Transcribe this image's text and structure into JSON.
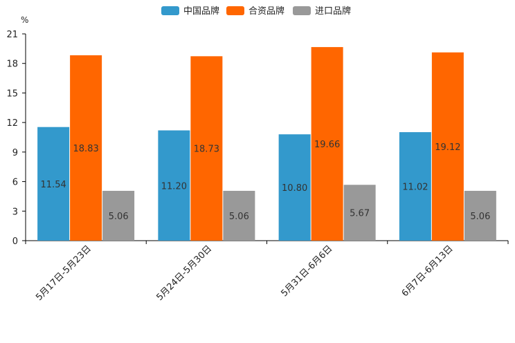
{
  "chart_data": {
    "type": "bar",
    "title": "",
    "ylabel": "%",
    "xlabel": "",
    "categories": [
      "5月17日-5月23日",
      "5月24日-5月30日",
      "5月31日-6月6日",
      "6月7日-6月13日"
    ],
    "series": [
      {
        "name": "中国品牌",
        "color": "#3399cc",
        "values": [
          11.54,
          11.2,
          10.8,
          11.02
        ],
        "labels": [
          "11.54",
          "11.20",
          "10.80",
          "11.02"
        ]
      },
      {
        "name": "合资品牌",
        "color": "#ff6600",
        "values": [
          18.83,
          18.73,
          19.66,
          19.12
        ],
        "labels": [
          "18.83",
          "18.73",
          "19.66",
          "19.12"
        ]
      },
      {
        "name": "进口品牌",
        "color": "#999999",
        "values": [
          5.06,
          5.06,
          5.67,
          5.06
        ],
        "labels": [
          "5.06",
          "5.06",
          "5.67",
          "5.06"
        ]
      }
    ],
    "ylim": [
      0,
      21
    ],
    "yticks": [
      "0",
      "3",
      "6",
      "9",
      "12",
      "15",
      "18",
      "21"
    ],
    "grid": false,
    "legend_position": "top-center"
  }
}
